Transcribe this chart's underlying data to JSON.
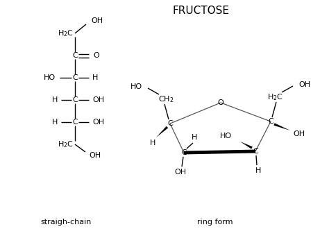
{
  "title": "FRUCTOSE",
  "bg_color": "#ffffff",
  "text_color": "#000000",
  "label_straight_chain": "straigh-chain",
  "label_ring_form": "ring form",
  "font_size_title": 11,
  "font_size_labels": 8,
  "font_size_atoms": 8
}
